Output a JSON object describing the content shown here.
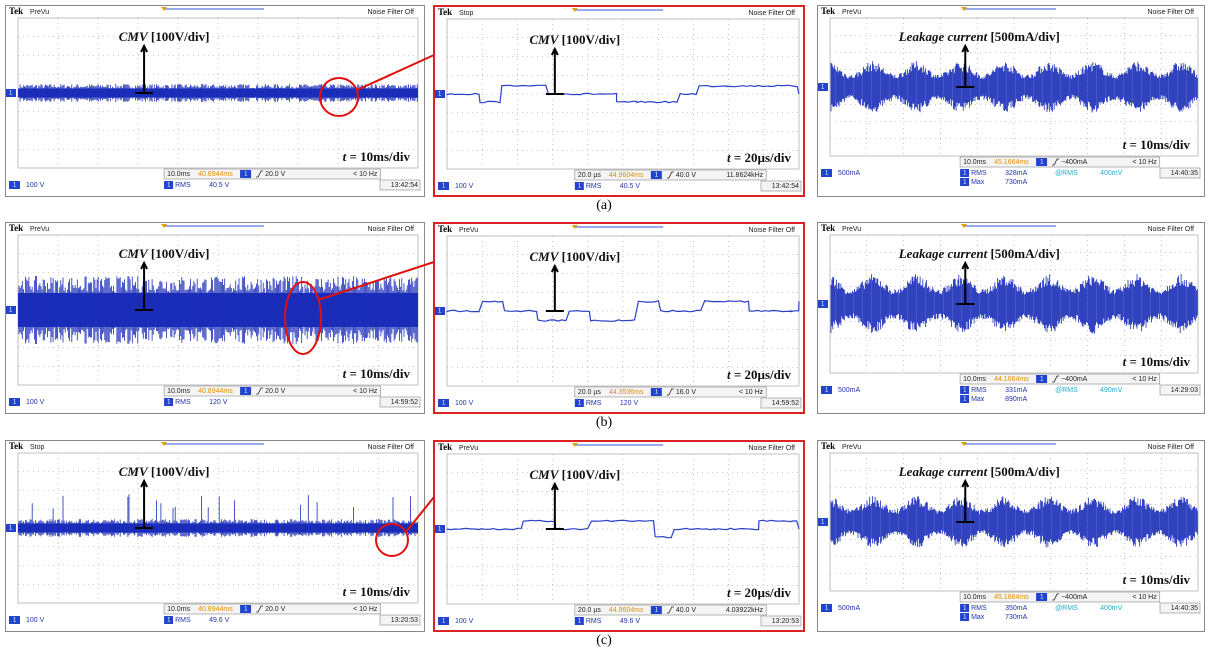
{
  "rows": [
    {
      "label": "(a)",
      "panels": [
        {
          "brand": "Tek",
          "status": "PreVu",
          "filter": "Noise Filter Off",
          "channel_number": "1",
          "annotation": {
            "italic": "CMV",
            "text": "[100V/div]"
          },
          "time": {
            "var": "t",
            "text": "= 10ms/div"
          },
          "horizontal": "10.0ms",
          "position": "40.6944ms",
          "trigger": "20.0 V",
          "frequency": "< 10 Hz",
          "channel": "100 V",
          "measures": [
            {
              "name": "RMS",
              "value": "40.5 V"
            }
          ],
          "clock": "13:42:54"
        },
        {
          "brand": "Tek",
          "status": "Stop",
          "filter": "Noise Filter Off",
          "channel_number": "1",
          "annotation": {
            "italic": "CMV",
            "text": "[100V/div]"
          },
          "time": {
            "var": "t",
            "text": "= 20µs/div"
          },
          "horizontal": "20.0 µs",
          "position": "44.9604ms",
          "trigger": "40.0 V",
          "frequency": "11.8624kHz",
          "channel": "100 V",
          "measures": [
            {
              "name": "RMS",
              "value": "40.5 V"
            }
          ],
          "clock": "13:42:54"
        },
        {
          "brand": "Tek",
          "status": "PreVu",
          "filter": "Noise Filter Off",
          "channel_number": "1",
          "annotation": {
            "italic": "Leakage current",
            "text": "[500mA/div]"
          },
          "time": {
            "var": "t",
            "text": "= 10ms/div"
          },
          "horizontal": "10.0ms",
          "position": "45.1664ms",
          "trigger": "−400mA",
          "frequency": "< 10 Hz",
          "channel": "500mA",
          "measures": [
            {
              "name": "RMS",
              "value": "328mA"
            },
            {
              "name": "Max",
              "value": "730mA"
            }
          ],
          "cursor": {
            "name": "@RMS",
            "value": "400mV"
          },
          "clock": "14:40:35"
        }
      ]
    },
    {
      "label": "(b)",
      "panels": [
        {
          "brand": "Tek",
          "status": "PreVu",
          "filter": "Noise Filter Off",
          "channel_number": "1",
          "annotation": {
            "italic": "CMV",
            "text": "[100V/div]"
          },
          "time": {
            "var": "t",
            "text": "= 10ms/div"
          },
          "horizontal": "10.0ms",
          "position": "40.6944ms",
          "trigger": "20.0 V",
          "frequency": "< 10 Hz",
          "channel": "100 V",
          "measures": [
            {
              "name": "RMS",
              "value": "120 V"
            }
          ],
          "clock": "14:59:52"
        },
        {
          "brand": "Tek",
          "status": "PreVu",
          "filter": "Noise Filter Off",
          "channel_number": "1",
          "annotation": {
            "italic": "CMV",
            "text": "[100V/div]"
          },
          "time": {
            "var": "t",
            "text": "= 20µs/div"
          },
          "horizontal": "20.0 µs",
          "position": "44.3536ms",
          "trigger": "16.0 V",
          "frequency": "< 10 Hz",
          "channel": "100 V",
          "measures": [
            {
              "name": "RMS",
              "value": "120 V"
            }
          ],
          "clock": "14:59:52"
        },
        {
          "brand": "Tek",
          "status": "PreVu",
          "filter": "Noise Filter Off",
          "channel_number": "1",
          "annotation": {
            "italic": "Leakage current",
            "text": "[500mA/div]"
          },
          "time": {
            "var": "t",
            "text": "= 10ms/div"
          },
          "horizontal": "10.0ms",
          "position": "44.1664ms",
          "trigger": "−400mA",
          "frequency": "< 10 Hz",
          "channel": "500mA",
          "measures": [
            {
              "name": "RMS",
              "value": "331mA"
            },
            {
              "name": "Max",
              "value": "890mA"
            }
          ],
          "cursor": {
            "name": "@RMS",
            "value": "490mV"
          },
          "clock": "14:29:03"
        }
      ]
    },
    {
      "label": "(c)",
      "panels": [
        {
          "brand": "Tek",
          "status": "Stop",
          "filter": "Noise Filter Off",
          "channel_number": "1",
          "annotation": {
            "italic": "CMV",
            "text": "[100V/div]"
          },
          "time": {
            "var": "t",
            "text": "= 10ms/div"
          },
          "horizontal": "10.0ms",
          "position": "40.6944ms",
          "trigger": "20.0 V",
          "frequency": "< 10 Hz",
          "channel": "100 V",
          "measures": [
            {
              "name": "RMS",
              "value": "49.6 V"
            }
          ],
          "clock": "13:20:53"
        },
        {
          "brand": "Tek",
          "status": "PreVu",
          "filter": "Noise Filter Off",
          "channel_number": "1",
          "annotation": {
            "italic": "CMV",
            "text": "[100V/div]"
          },
          "time": {
            "var": "t",
            "text": "= 20µs/div"
          },
          "horizontal": "20.0 µs",
          "position": "44.9604ms",
          "trigger": "40.0 V",
          "frequency": "4.03922kHz",
          "channel": "100 V",
          "measures": [
            {
              "name": "RMS",
              "value": "49.6 V"
            }
          ],
          "clock": "13:20:53"
        },
        {
          "brand": "Tek",
          "status": "PreVu",
          "filter": "Noise Filter Off",
          "channel_number": "1",
          "annotation": {
            "italic": "Leakage current",
            "text": "[500mA/div]"
          },
          "time": {
            "var": "t",
            "text": "= 10ms/div"
          },
          "horizontal": "10.0ms",
          "position": "45.1664ms",
          "trigger": "−400mA",
          "frequency": "< 10 Hz",
          "channel": "500mA",
          "measures": [
            {
              "name": "RMS",
              "value": "350mA"
            },
            {
              "name": "Max",
              "value": "730mA"
            }
          ],
          "cursor": {
            "name": "@RMS",
            "value": "400mV"
          },
          "clock": "14:40:35"
        }
      ]
    }
  ]
}
